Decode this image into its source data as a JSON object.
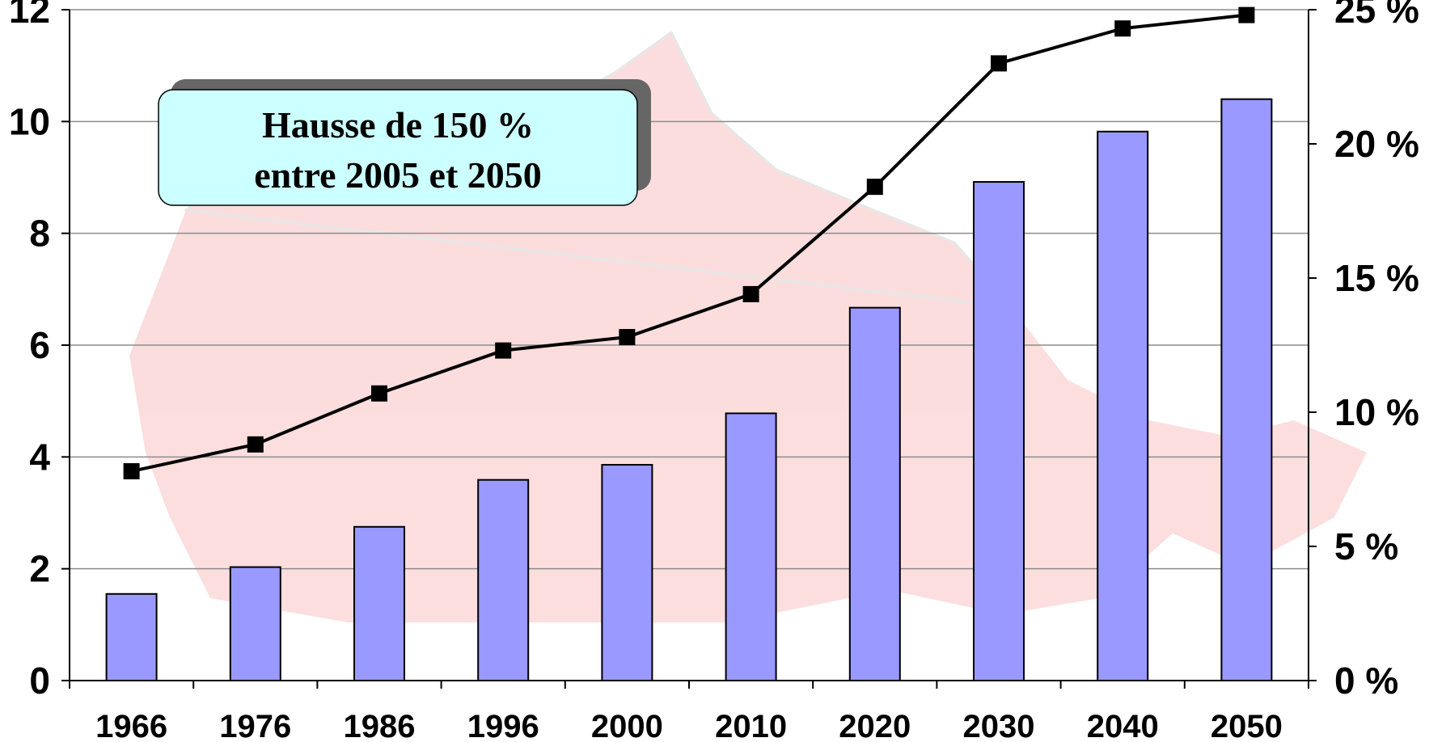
{
  "chart_data": {
    "type": "bar",
    "categories": [
      "1966",
      "1976",
      "1986",
      "1996",
      "2000",
      "2010",
      "2020",
      "2030",
      "2040",
      "2050"
    ],
    "series": [
      {
        "axis": "left",
        "type": "bar",
        "color": "#9999ff",
        "values": [
          1.55,
          2.03,
          2.75,
          3.59,
          3.86,
          4.78,
          6.67,
          8.92,
          9.82,
          10.4
        ]
      },
      {
        "axis": "right",
        "type": "line",
        "color": "#000000",
        "values": [
          7.8,
          8.8,
          10.7,
          12.3,
          12.8,
          14.4,
          18.4,
          23.0,
          24.3,
          24.8
        ]
      }
    ],
    "left_axis": {
      "ylim": [
        0,
        12
      ],
      "ticks": [
        "0",
        "2",
        "4",
        "6",
        "8",
        "10",
        "12"
      ]
    },
    "right_axis": {
      "ylim": [
        0,
        25
      ],
      "ticks": [
        "0 %",
        "5 %",
        "10 %",
        "15 %",
        "20 %",
        "25 %"
      ]
    },
    "grid": true,
    "annotation": {
      "lines": [
        "Hausse de 150 %",
        "entre 2005 et 2050"
      ],
      "fill": "#ccffff"
    }
  }
}
